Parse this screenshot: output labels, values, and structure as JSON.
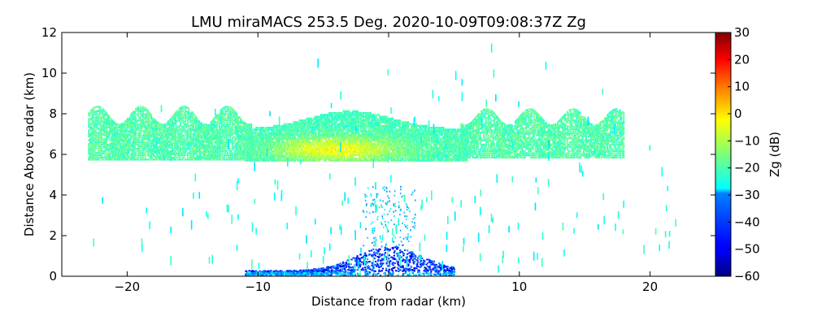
{
  "chart_data": {
    "type": "heatmap",
    "title": "LMU miraMACS 253.5 Deg. 2020-10-09T09:08:37Z  Zg",
    "xlabel": "Distance from radar (km)",
    "ylabel": "Distance Above radar  (km)",
    "xlim": [
      -25,
      25
    ],
    "ylim": [
      0,
      12
    ],
    "x_ticks": [
      "−20",
      "−10",
      "0",
      "10",
      "20"
    ],
    "y_ticks": [
      "0",
      "2",
      "4",
      "6",
      "8",
      "10",
      "12"
    ],
    "x_tick_values": [
      -20,
      -10,
      0,
      10,
      20
    ],
    "y_tick_values": [
      0,
      2,
      4,
      6,
      8,
      10,
      12
    ],
    "colorbar": {
      "label": "Zg (dB)",
      "range": [
        -60,
        30
      ],
      "ticks": [
        "−60",
        "−50",
        "−40",
        "−30",
        "−20",
        "−10",
        "0",
        "10",
        "20",
        "30"
      ],
      "tick_values": [
        -60,
        -50,
        -40,
        -30,
        -20,
        -10,
        0,
        10,
        20,
        30
      ],
      "colormap": "jet"
    },
    "features": [
      {
        "name": "cirrus-layer-left",
        "x_range": [
          -23,
          -10
        ],
        "z_range": [
          5.7,
          8.0
        ],
        "zg_db": -18
      },
      {
        "name": "cloud-layer-core",
        "x_range": [
          -11,
          6
        ],
        "z_range": [
          5.6,
          8.0
        ],
        "zg_db": -8
      },
      {
        "name": "cirrus-layer-right",
        "x_range": [
          5,
          18
        ],
        "z_range": [
          5.7,
          8.0
        ],
        "zg_db": -18
      },
      {
        "name": "near-radar-echo",
        "x_range": [
          -12,
          5
        ],
        "z_range": [
          0.0,
          1.5
        ],
        "zg_db": -42
      }
    ]
  }
}
